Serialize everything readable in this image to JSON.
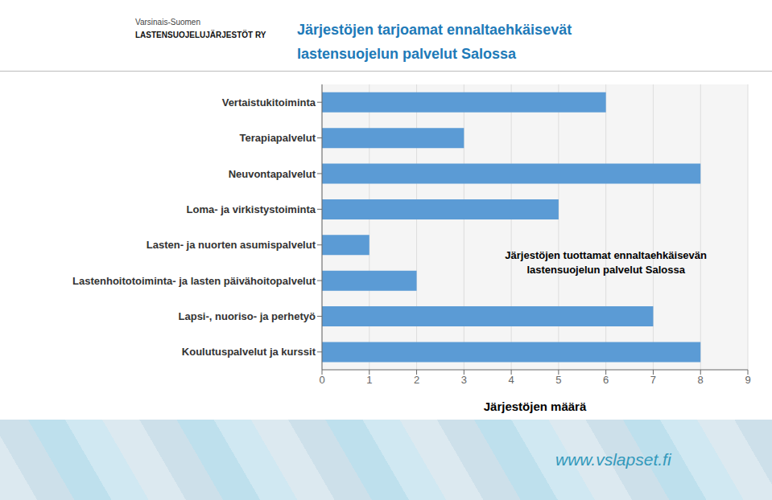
{
  "chart_data": {
    "type": "bar",
    "orientation": "horizontal",
    "title": "Järjestöjen tarjoamat ennaltaehkäisevät\nlastensuojelun palvelut Salossa",
    "xlabel": "Järjestöjen määrä",
    "categories": [
      "Vertaistukitoiminta",
      "Terapiapalvelut",
      "Neuvontapalvelut",
      "Loma- ja virkistystoiminta",
      "Lasten- ja nuorten asumispalvelut",
      "Lastenhoitotoiminta- ja lasten päivähoitopalvelut",
      "Lapsi-, nuoriso- ja perhetyö",
      "Koulutuspalvelut ja kurssit"
    ],
    "values": [
      6,
      3,
      8,
      5,
      1,
      2,
      7,
      8
    ],
    "color": "#5b9bd5",
    "xlim": [
      0,
      9
    ],
    "xticks": [
      0,
      1,
      2,
      3,
      4,
      5,
      6,
      7,
      8,
      9
    ],
    "grid": true,
    "annotations": [
      "Varsinais-Suomen",
      "LASTENSUOJELUJÄRJESTÖT RY",
      "Järjestöjen tuottamat ennaltaehkäisevän\nlastensuojelun palvelut Salossa",
      "www.vslapset.fi"
    ]
  }
}
